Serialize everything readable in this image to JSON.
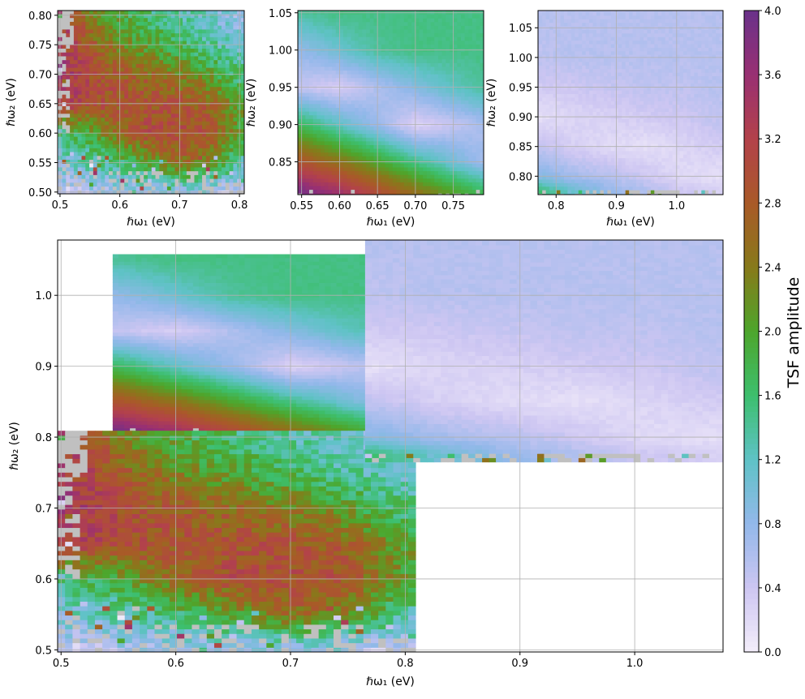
{
  "chart_data": {
    "type": "heatmap",
    "colormap": {
      "stops": [
        [
          0,
          "#f4eefa"
        ],
        [
          0.4,
          "#cdc6f2"
        ],
        [
          0.8,
          "#93b8ea"
        ],
        [
          1.2,
          "#5fc2c6"
        ],
        [
          1.6,
          "#3dbf6e"
        ],
        [
          2.0,
          "#4da62c"
        ],
        [
          2.4,
          "#877a1a"
        ],
        [
          2.8,
          "#a95a28"
        ],
        [
          3.2,
          "#b3424a"
        ],
        [
          3.6,
          "#993072"
        ],
        [
          4.0,
          "#6a318a"
        ]
      ],
      "masked_color": "#c0c0c0",
      "range": [
        0,
        4.0
      ]
    },
    "colorbar": {
      "label": "TSF amplitude",
      "ticks": [
        0.0,
        0.4,
        0.8,
        1.2,
        1.6,
        2.0,
        2.4,
        2.8,
        3.2,
        3.6,
        4.0
      ],
      "tick_labels": [
        "0.0",
        "0.4",
        "0.8",
        "1.2",
        "1.6",
        "2.0",
        "2.4",
        "2.8",
        "3.2",
        "3.6",
        "4.0"
      ]
    },
    "datasets": {
      "low": {
        "x_range": [
          0.497,
          0.808
        ],
        "y_range": [
          0.497,
          0.808
        ],
        "step": 0.0065,
        "grid_x": [
          0.5,
          0.55,
          0.6,
          0.65,
          0.7,
          0.75,
          0.8
        ],
        "grid_y": [
          0.8,
          0.75,
          0.7,
          0.65,
          0.6,
          0.55,
          0.5
        ],
        "values": [
          [
            3.4,
            2.4,
            1.9,
            1.6,
            1.3,
            1.1,
            0.8
          ],
          [
            3.4,
            2.8,
            2.3,
            2.0,
            1.7,
            1.4,
            1.1
          ],
          [
            3.5,
            3.0,
            2.8,
            2.6,
            2.4,
            2.0,
            1.6
          ],
          [
            3.3,
            3.0,
            2.9,
            2.9,
            2.9,
            2.7,
            2.0
          ],
          [
            1.6,
            1.9,
            2.6,
            3.0,
            3.0,
            2.9,
            2.1
          ],
          [
            1.0,
            1.3,
            1.6,
            2.0,
            2.6,
            2.3,
            1.3
          ],
          [
            0.5,
            0.6,
            0.7,
            0.8,
            0.8,
            0.6,
            0.3
          ]
        ]
      },
      "mid": {
        "x_range": [
          0.545,
          0.79
        ],
        "y_range": [
          0.803,
          1.058
        ],
        "step": 0.005,
        "grid_x": [
          0.55,
          0.6,
          0.65,
          0.7,
          0.75,
          0.79
        ],
        "grid_y": [
          1.05,
          1.0,
          0.95,
          0.9,
          0.85,
          0.81
        ],
        "values": [
          [
            1.4,
            1.5,
            1.5,
            1.5,
            1.5,
            1.5
          ],
          [
            0.8,
            1.1,
            1.4,
            1.5,
            1.5,
            1.5
          ],
          [
            0.45,
            0.3,
            0.6,
            0.9,
            1.2,
            1.4
          ],
          [
            1.7,
            1.2,
            0.75,
            0.25,
            0.45,
            0.65
          ],
          [
            2.9,
            2.5,
            2.0,
            1.5,
            1.05,
            0.7
          ],
          [
            3.9,
            3.5,
            3.0,
            2.5,
            2.05,
            1.7
          ]
        ]
      },
      "high": {
        "x_range": [
          0.765,
          1.077
        ],
        "y_range": [
          0.765,
          1.079
        ],
        "step": 0.006,
        "grid_x": [
          0.77,
          0.83,
          0.89,
          0.95,
          1.01,
          1.07
        ],
        "grid_y": [
          1.07,
          1.0,
          0.95,
          0.9,
          0.85,
          0.8,
          0.775
        ],
        "values": [
          [
            0.55,
            0.55,
            0.55,
            0.55,
            0.55,
            0.55
          ],
          [
            0.5,
            0.55,
            0.55,
            0.55,
            0.55,
            0.55
          ],
          [
            0.35,
            0.4,
            0.45,
            0.5,
            0.5,
            0.55
          ],
          [
            0.15,
            0.25,
            0.3,
            0.35,
            0.4,
            0.5
          ],
          [
            0.5,
            0.3,
            0.2,
            0.15,
            0.25,
            0.35
          ],
          [
            0.9,
            0.7,
            0.55,
            0.4,
            0.2,
            0.15
          ],
          [
            1.6,
            1.1,
            0.8,
            0.6,
            0.4,
            0.3
          ]
        ]
      }
    },
    "panels": [
      {
        "id": "low",
        "datasets": [
          "low"
        ],
        "xlim": [
          0.496,
          0.808
        ],
        "ylim": [
          0.497,
          0.808
        ],
        "xlabel": "ℏω₁ (eV)",
        "ylabel": "ℏω₂ (eV)",
        "xticks": [
          0.5,
          0.6,
          0.7,
          0.8
        ],
        "xtick_labels": [
          "0.5",
          "0.6",
          "0.7",
          "0.8"
        ],
        "yticks": [
          0.5,
          0.55,
          0.6,
          0.65,
          0.7,
          0.75,
          0.8
        ],
        "ytick_labels": [
          "0.50",
          "0.55",
          "0.60",
          "0.65",
          "0.70",
          "0.75",
          "0.80"
        ],
        "grid": true
      },
      {
        "id": "mid",
        "datasets": [
          "mid"
        ],
        "xlim": [
          0.545,
          0.79
        ],
        "ylim": [
          0.806,
          1.053
        ],
        "xlabel": "ℏω₁ (eV)",
        "ylabel": "ℏω₂ (eV)",
        "xticks": [
          0.55,
          0.6,
          0.65,
          0.7,
          0.75
        ],
        "xtick_labels": [
          "0.55",
          "0.60",
          "0.65",
          "0.70",
          "0.75"
        ],
        "yticks": [
          0.85,
          0.9,
          0.95,
          1.0,
          1.05
        ],
        "ytick_labels": [
          "0.85",
          "0.90",
          "0.95",
          "1.00",
          "1.05"
        ],
        "grid": true
      },
      {
        "id": "high",
        "datasets": [
          "high"
        ],
        "xlim": [
          0.77,
          1.077
        ],
        "ylim": [
          0.769,
          1.079
        ],
        "xlabel": "ℏω₁ (eV)",
        "ylabel": "ℏω₂ (eV)",
        "xticks": [
          0.8,
          0.9,
          1.0
        ],
        "xtick_labels": [
          "0.8",
          "0.9",
          "1.0"
        ],
        "yticks": [
          0.8,
          0.85,
          0.9,
          0.95,
          1.0,
          1.05
        ],
        "ytick_labels": [
          "0.80",
          "0.85",
          "0.90",
          "0.95",
          "1.00",
          "1.05"
        ],
        "grid": true
      },
      {
        "id": "combined",
        "datasets": [
          "mid",
          "low",
          "high"
        ],
        "xlim": [
          0.497,
          1.077
        ],
        "ylim": [
          0.497,
          1.078
        ],
        "xlabel": "ℏω₁ (eV)",
        "ylabel": "ℏω₂ (eV)",
        "xticks": [
          0.5,
          0.6,
          0.7,
          0.8,
          0.9,
          1.0
        ],
        "xtick_labels": [
          "0.5",
          "0.6",
          "0.7",
          "0.8",
          "0.9",
          "1.0"
        ],
        "yticks": [
          0.5,
          0.6,
          0.7,
          0.8,
          0.9,
          1.0
        ],
        "ytick_labels": [
          "0.5",
          "0.6",
          "0.7",
          "0.8",
          "0.9",
          "1.0"
        ],
        "grid": true
      }
    ]
  }
}
